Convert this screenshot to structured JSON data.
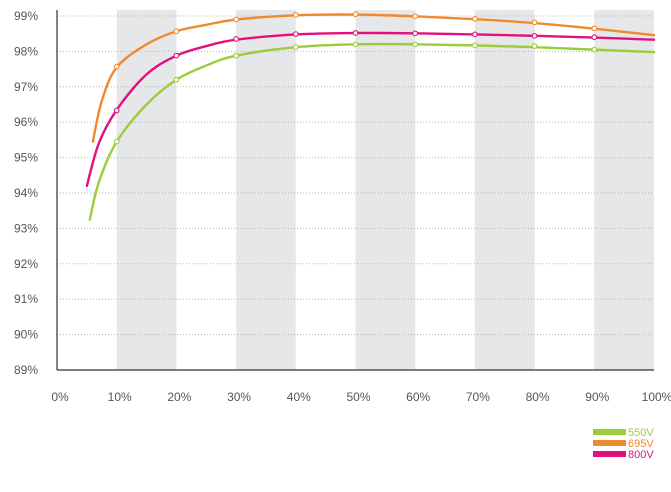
{
  "chart_data": {
    "type": "line",
    "title": "",
    "xlabel": "",
    "ylabel": "",
    "xlim": [
      0,
      100
    ],
    "ylim": [
      89,
      99
    ],
    "x_ticks": [
      "0%",
      "10%",
      "20%",
      "30%",
      "40%",
      "50%",
      "60%",
      "70%",
      "80%",
      "90%",
      "100%"
    ],
    "y_ticks": [
      "89%",
      "90%",
      "91%",
      "92%",
      "93%",
      "94%",
      "95%",
      "96%",
      "97%",
      "98%",
      "99%"
    ],
    "grid": true,
    "shaded_bands": [
      [
        10,
        20
      ],
      [
        30,
        40
      ],
      [
        50,
        60
      ],
      [
        70,
        80
      ],
      [
        90,
        100
      ]
    ],
    "legend_position": "bottom-right",
    "series": [
      {
        "name": "550V",
        "color": "#9dcc3a",
        "curve": [
          [
            5.5,
            93.25
          ],
          [
            7,
            94.3
          ],
          [
            10,
            95.45
          ],
          [
            15,
            96.5
          ],
          [
            20,
            97.2
          ],
          [
            25,
            97.6
          ],
          [
            30,
            97.88
          ],
          [
            40,
            98.12
          ],
          [
            50,
            98.2
          ],
          [
            60,
            98.2
          ],
          [
            70,
            98.17
          ],
          [
            80,
            98.12
          ],
          [
            90,
            98.05
          ],
          [
            100,
            97.98
          ]
        ],
        "markers": [
          [
            10,
            95.45
          ],
          [
            20,
            97.2
          ],
          [
            30,
            97.88
          ],
          [
            40,
            98.12
          ],
          [
            50,
            98.2
          ],
          [
            60,
            98.2
          ],
          [
            70,
            98.17
          ],
          [
            80,
            98.15
          ],
          [
            90,
            98.05
          ]
        ]
      },
      {
        "name": "695V",
        "color": "#f08a2c",
        "curve": [
          [
            6,
            95.45
          ],
          [
            7.5,
            96.6
          ],
          [
            10,
            97.55
          ],
          [
            15,
            98.2
          ],
          [
            20,
            98.57
          ],
          [
            25,
            98.75
          ],
          [
            30,
            98.9
          ],
          [
            40,
            99.02
          ],
          [
            50,
            99.04
          ],
          [
            60,
            98.99
          ],
          [
            70,
            98.91
          ],
          [
            80,
            98.8
          ],
          [
            90,
            98.64
          ],
          [
            100,
            98.46
          ]
        ],
        "markers": [
          [
            10,
            97.57
          ],
          [
            20,
            98.57
          ],
          [
            30,
            98.9
          ],
          [
            40,
            99.03
          ],
          [
            50,
            99.05
          ],
          [
            60,
            98.99
          ],
          [
            70,
            98.92
          ],
          [
            80,
            98.82
          ],
          [
            90,
            98.65
          ]
        ]
      },
      {
        "name": "800V",
        "color": "#e0117f",
        "curve": [
          [
            5,
            94.2
          ],
          [
            7,
            95.4
          ],
          [
            10,
            96.35
          ],
          [
            15,
            97.35
          ],
          [
            20,
            97.88
          ],
          [
            25,
            98.15
          ],
          [
            30,
            98.33
          ],
          [
            40,
            98.48
          ],
          [
            50,
            98.52
          ],
          [
            60,
            98.51
          ],
          [
            70,
            98.48
          ],
          [
            80,
            98.44
          ],
          [
            90,
            98.39
          ],
          [
            100,
            98.33
          ]
        ],
        "markers": [
          [
            10,
            96.33
          ],
          [
            20,
            97.88
          ],
          [
            30,
            98.35
          ],
          [
            40,
            98.49
          ],
          [
            50,
            98.52
          ],
          [
            60,
            98.51
          ],
          [
            70,
            98.48
          ],
          [
            80,
            98.44
          ],
          [
            90,
            98.4
          ]
        ]
      }
    ]
  }
}
